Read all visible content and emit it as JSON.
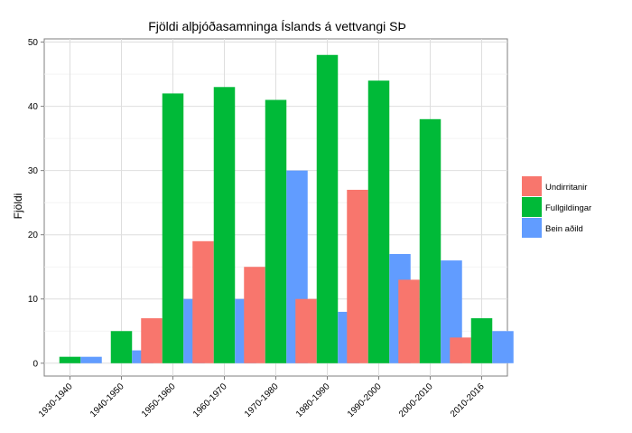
{
  "chart_data": {
    "type": "bar",
    "title": "Fjöldi alþjóðasamninga Íslands á vettvangi SÞ",
    "xlabel": "",
    "ylabel": "Fjöldi",
    "categories": [
      "1930-1940",
      "1940-1950",
      "1950-1960",
      "1960-1970",
      "1970-1980",
      "1980-1990",
      "1990-2000",
      "2000-2010",
      "2010-2016"
    ],
    "series": [
      {
        "name": "Undirritanir",
        "color": "#F8766D",
        "values": [
          0,
          0,
          7,
          19,
          15,
          10,
          27,
          13,
          4
        ]
      },
      {
        "name": "Fullgildingar",
        "color": "#00BA38",
        "values": [
          1,
          5,
          42,
          43,
          41,
          48,
          44,
          38,
          7
        ]
      },
      {
        "name": "Bein aðild",
        "color": "#619CFF",
        "values": [
          1,
          2,
          10,
          10,
          30,
          8,
          17,
          16,
          5
        ]
      }
    ],
    "ylim": [
      -2,
      50.5
    ],
    "yticks": [
      0,
      10,
      20,
      30,
      40,
      50
    ],
    "grid": true,
    "legend_position": "right"
  }
}
